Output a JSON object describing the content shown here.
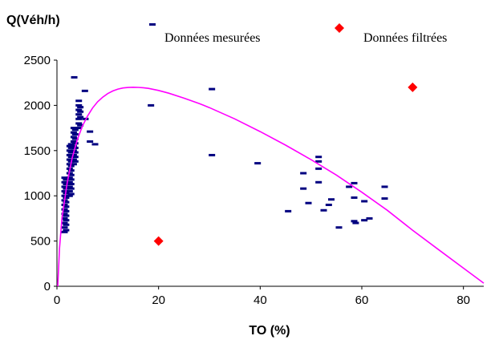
{
  "chart_data": {
    "type": "scatter",
    "ylabel": "Q(Véh/h)",
    "xlabel": "TO (%)",
    "xlim": [
      0,
      84
    ],
    "ylim": [
      0,
      2500
    ],
    "xticks": [
      0,
      20,
      40,
      60,
      80
    ],
    "yticks": [
      0,
      500,
      1000,
      1500,
      2000,
      2500
    ],
    "grid": false,
    "legend_position": "top",
    "series": [
      {
        "name": "Données mesurées",
        "color": "#000080",
        "marker": "dash",
        "points": [
          [
            1.5,
            600
          ],
          [
            1.5,
            650
          ],
          [
            1.5,
            700
          ],
          [
            1.5,
            750
          ],
          [
            1.5,
            800
          ],
          [
            1.5,
            850
          ],
          [
            1.5,
            900
          ],
          [
            1.5,
            950
          ],
          [
            1.5,
            1000
          ],
          [
            1.5,
            1050
          ],
          [
            1.5,
            1100
          ],
          [
            1.5,
            1150
          ],
          [
            1.5,
            1200
          ],
          [
            1.8,
            620
          ],
          [
            1.8,
            680
          ],
          [
            1.8,
            730
          ],
          [
            1.8,
            780
          ],
          [
            1.8,
            830
          ],
          [
            1.8,
            880
          ],
          [
            1.8,
            930
          ],
          [
            1.8,
            980
          ],
          [
            1.8,
            1030
          ],
          [
            1.8,
            1080
          ],
          [
            1.8,
            1130
          ],
          [
            1.8,
            1180
          ],
          [
            2.5,
            1000
          ],
          [
            2.5,
            1050
          ],
          [
            2.5,
            1100
          ],
          [
            2.5,
            1150
          ],
          [
            2.5,
            1200
          ],
          [
            2.5,
            1250
          ],
          [
            2.5,
            1300
          ],
          [
            2.5,
            1350
          ],
          [
            2.5,
            1400
          ],
          [
            2.5,
            1450
          ],
          [
            2.5,
            1500
          ],
          [
            2.5,
            1550
          ],
          [
            2.8,
            1020
          ],
          [
            2.8,
            1080
          ],
          [
            2.8,
            1130
          ],
          [
            2.8,
            1180
          ],
          [
            2.8,
            1230
          ],
          [
            2.8,
            1280
          ],
          [
            2.8,
            1330
          ],
          [
            2.8,
            1380
          ],
          [
            2.8,
            1430
          ],
          [
            2.8,
            1480
          ],
          [
            2.8,
            1530
          ],
          [
            2.8,
            1570
          ],
          [
            3.3,
            1350
          ],
          [
            3.3,
            1400
          ],
          [
            3.3,
            1450
          ],
          [
            3.3,
            1500
          ],
          [
            3.3,
            1550
          ],
          [
            3.3,
            1600
          ],
          [
            3.3,
            1650
          ],
          [
            3.3,
            1700
          ],
          [
            3.3,
            1750
          ],
          [
            3.6,
            1380
          ],
          [
            3.6,
            1430
          ],
          [
            3.6,
            1480
          ],
          [
            3.6,
            1530
          ],
          [
            3.6,
            1580
          ],
          [
            3.6,
            1630
          ],
          [
            3.6,
            1680
          ],
          [
            3.6,
            1730
          ],
          [
            3.4,
            2310
          ],
          [
            4.3,
            1750
          ],
          [
            4.3,
            1800
          ],
          [
            4.3,
            1850
          ],
          [
            4.3,
            1900
          ],
          [
            4.3,
            1950
          ],
          [
            4.3,
            2000
          ],
          [
            4.3,
            2050
          ],
          [
            4.6,
            1780
          ],
          [
            4.6,
            1870
          ],
          [
            4.6,
            1930
          ],
          [
            4.6,
            1980
          ],
          [
            5.5,
            2160
          ],
          [
            5.6,
            1850
          ],
          [
            6.5,
            1710
          ],
          [
            6.5,
            1600
          ],
          [
            7.5,
            1570
          ],
          [
            18.5,
            2000
          ],
          [
            30.5,
            2180
          ],
          [
            30.5,
            1450
          ],
          [
            39.5,
            1360
          ],
          [
            45.5,
            830
          ],
          [
            48.5,
            1250
          ],
          [
            48.5,
            1080
          ],
          [
            49.5,
            920
          ],
          [
            51.5,
            1430
          ],
          [
            51.5,
            1380
          ],
          [
            51.5,
            1300
          ],
          [
            51.5,
            1150
          ],
          [
            52.5,
            840
          ],
          [
            53.5,
            900
          ],
          [
            54.0,
            960
          ],
          [
            55.5,
            650
          ],
          [
            57.5,
            1100
          ],
          [
            58.5,
            1140
          ],
          [
            58.5,
            980
          ],
          [
            58.5,
            720
          ],
          [
            58.8,
            700
          ],
          [
            60.5,
            940
          ],
          [
            60.5,
            730
          ],
          [
            61.5,
            750
          ],
          [
            64.5,
            1100
          ],
          [
            64.5,
            970
          ]
        ]
      },
      {
        "name": "Données filtrées",
        "color": "#ff0000",
        "marker": "diamond",
        "points": [
          [
            20,
            500
          ],
          [
            70,
            2200
          ]
        ]
      }
    ],
    "curve": {
      "color": "#ff00ff",
      "points": [
        [
          0.15,
          0
        ],
        [
          0.5,
          420
        ],
        [
          1,
          760
        ],
        [
          2,
          1140
        ],
        [
          3,
          1420
        ],
        [
          4,
          1620
        ],
        [
          5,
          1770
        ],
        [
          6,
          1880
        ],
        [
          7,
          1970
        ],
        [
          8,
          2040
        ],
        [
          9,
          2090
        ],
        [
          10,
          2130
        ],
        [
          11,
          2160
        ],
        [
          12,
          2180
        ],
        [
          13,
          2192
        ],
        [
          14,
          2198
        ],
        [
          15,
          2200
        ],
        [
          16,
          2199
        ],
        [
          17,
          2195
        ],
        [
          18,
          2188
        ],
        [
          20,
          2165
        ],
        [
          22,
          2135
        ],
        [
          25,
          2080
        ],
        [
          28,
          2020
        ],
        [
          30,
          1975
        ],
        [
          35,
          1850
        ],
        [
          40,
          1710
        ],
        [
          45,
          1560
        ],
        [
          50,
          1400
        ],
        [
          55,
          1230
        ],
        [
          60,
          1040
        ],
        [
          65,
          840
        ],
        [
          70,
          620
        ],
        [
          75,
          410
        ],
        [
          80,
          200
        ],
        [
          84,
          35
        ]
      ]
    }
  }
}
